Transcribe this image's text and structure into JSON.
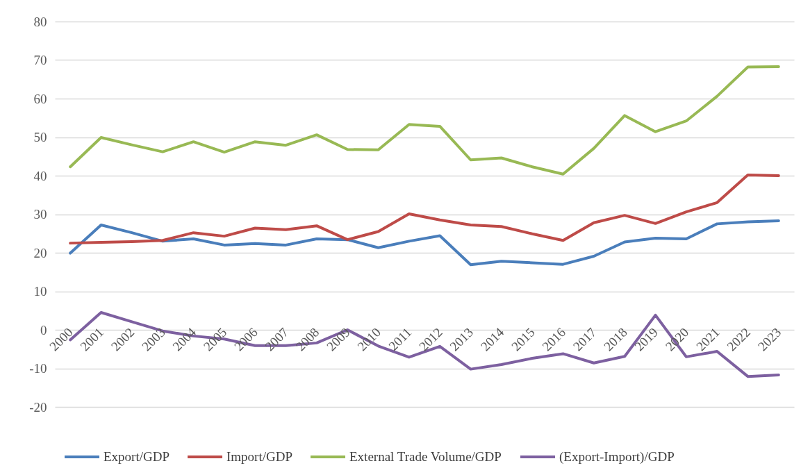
{
  "chart_data": {
    "type": "line",
    "categories": [
      "2000",
      "2001",
      "2002",
      "2003",
      "2004",
      "2005",
      "2006",
      "2007",
      "2008",
      "2009",
      "2010",
      "2011",
      "2012",
      "2013",
      "2014",
      "2015",
      "2016",
      "2017",
      "2018",
      "2019",
      "2020",
      "2021",
      "2022",
      "2023"
    ],
    "series": [
      {
        "name": "Export/GDP",
        "color": "#4a7ebb",
        "values": [
          19.9,
          27.2,
          25.2,
          23.0,
          23.6,
          22.0,
          22.4,
          22.0,
          23.6,
          23.4,
          21.3,
          23.0,
          24.4,
          16.9,
          17.8,
          17.4,
          17.0,
          19.1,
          22.8,
          23.8,
          23.6,
          27.5,
          28.0,
          28.3
        ]
      },
      {
        "name": "Import/GDP",
        "color": "#be4b48",
        "values": [
          22.5,
          22.7,
          22.9,
          23.2,
          25.2,
          24.3,
          26.4,
          26.0,
          27.0,
          23.4,
          25.5,
          30.1,
          28.5,
          27.2,
          26.8,
          24.9,
          23.2,
          27.8,
          29.7,
          27.6,
          30.6,
          33.0,
          40.2,
          40.0
        ]
      },
      {
        "name": "External Trade Volume/GDP",
        "color": "#98b954",
        "values": [
          42.3,
          49.9,
          48.0,
          46.2,
          48.8,
          46.1,
          48.8,
          47.9,
          50.6,
          46.8,
          46.7,
          53.3,
          52.8,
          44.1,
          44.6,
          42.3,
          40.4,
          47.1,
          55.6,
          51.4,
          54.2,
          60.6,
          68.2,
          68.3
        ]
      },
      {
        "name": "(Export-Import)/GDP",
        "color": "#7d60a0",
        "values": [
          -2.6,
          4.5,
          2.1,
          -0.3,
          -1.6,
          -2.4,
          -4.1,
          -4.1,
          -3.4,
          0.0,
          -4.2,
          -7.1,
          -4.3,
          -10.2,
          -9.0,
          -7.4,
          -6.2,
          -8.6,
          -6.9,
          3.8,
          -7.0,
          -5.6,
          -12.1,
          -11.7
        ]
      }
    ],
    "ylim": [
      -20,
      80
    ],
    "yticks": [
      -20,
      -10,
      0,
      10,
      20,
      30,
      40,
      50,
      60,
      70,
      80
    ],
    "grid": "y",
    "legend": "bottom",
    "marker": "none",
    "line_style": "solid"
  }
}
